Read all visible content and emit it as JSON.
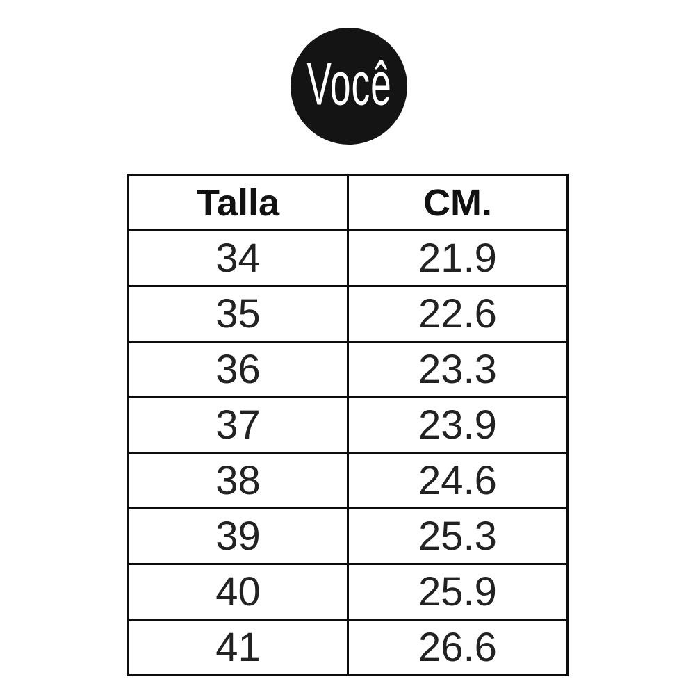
{
  "logo": {
    "text": "Você",
    "bg_color": "#141414",
    "text_color": "#ffffff",
    "shape": "circle"
  },
  "table": {
    "headers": [
      "Talla",
      "CM."
    ],
    "rows": [
      [
        "34",
        "21.9"
      ],
      [
        "35",
        "22.6"
      ],
      [
        "36",
        "23.3"
      ],
      [
        "37",
        "23.9"
      ],
      [
        "38",
        "24.6"
      ],
      [
        "39",
        "25.3"
      ],
      [
        "40",
        "25.9"
      ],
      [
        "41",
        "26.6"
      ]
    ],
    "border_color": "#0d0d0d",
    "background": "#ffffff"
  },
  "chart_data": {
    "type": "table",
    "title": "Você",
    "columns": [
      "Talla",
      "CM."
    ],
    "rows": [
      [
        34,
        21.9
      ],
      [
        35,
        22.6
      ],
      [
        36,
        23.3
      ],
      [
        37,
        23.9
      ],
      [
        38,
        24.6
      ],
      [
        39,
        25.3
      ],
      [
        40,
        25.9
      ],
      [
        41,
        26.6
      ]
    ]
  }
}
